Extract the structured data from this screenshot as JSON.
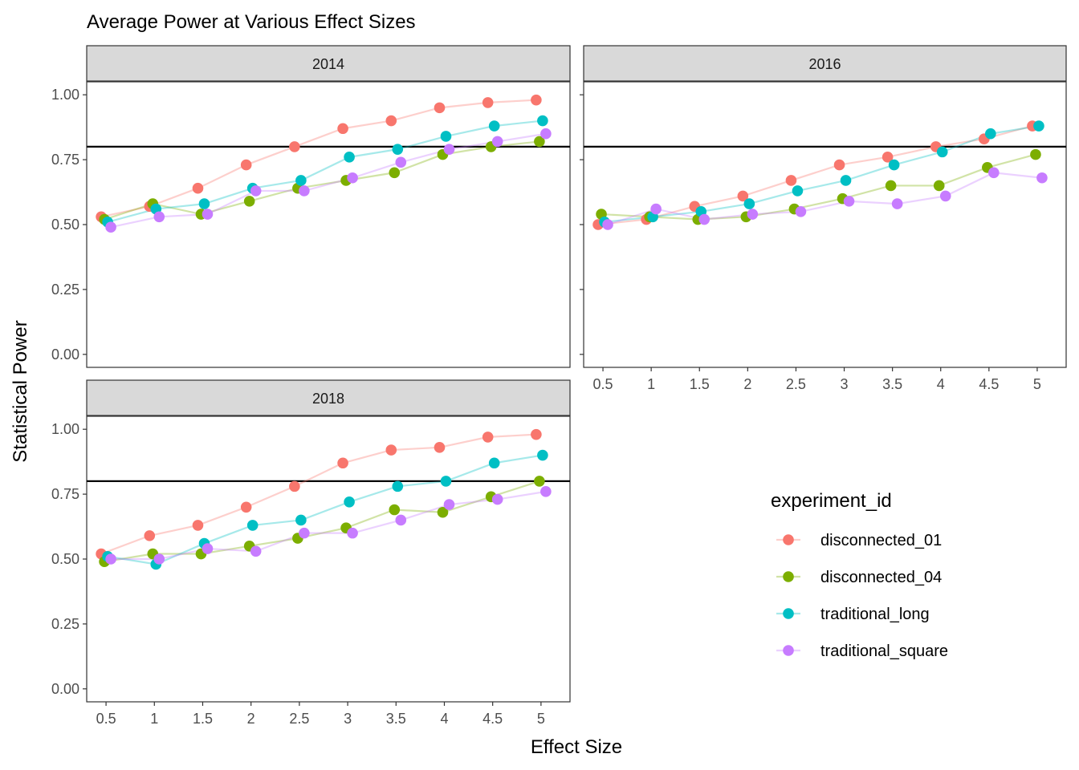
{
  "chart_data": {
    "type": "line",
    "title": "Average Power at Various Effect Sizes",
    "xlabel": "Effect Size",
    "ylabel": "Statistical Power",
    "x_ticks": [
      "0.5",
      "1",
      "1.5",
      "2",
      "2.5",
      "3",
      "3.5",
      "4",
      "4.5",
      "5"
    ],
    "y_ticks": [
      "0.00",
      "0.25",
      "0.50",
      "0.75",
      "1.00"
    ],
    "x": [
      0.5,
      1,
      1.5,
      2,
      2.5,
      3,
      3.5,
      4,
      4.5,
      5
    ],
    "xlim": [
      0.3,
      5.3
    ],
    "ylim": [
      -0.05,
      1.05
    ],
    "reference_line": 0.8,
    "legend": {
      "title": "experiment_id",
      "position": "right"
    },
    "series_meta": [
      {
        "name": "disconnected_01",
        "color": "#F8766D"
      },
      {
        "name": "disconnected_04",
        "color": "#7CAE00"
      },
      {
        "name": "traditional_long",
        "color": "#00BFC4"
      },
      {
        "name": "traditional_square",
        "color": "#C77CFF"
      }
    ],
    "panels": [
      {
        "label": "2014",
        "series": [
          {
            "name": "disconnected_01",
            "values": [
              0.53,
              0.57,
              0.64,
              0.73,
              0.8,
              0.87,
              0.9,
              0.95,
              0.97,
              0.98
            ]
          },
          {
            "name": "disconnected_04",
            "values": [
              0.52,
              0.58,
              0.54,
              0.59,
              0.64,
              0.67,
              0.7,
              0.77,
              0.8,
              0.82
            ]
          },
          {
            "name": "traditional_long",
            "values": [
              0.51,
              0.56,
              0.58,
              0.64,
              0.67,
              0.76,
              0.79,
              0.84,
              0.88,
              0.9
            ]
          },
          {
            "name": "traditional_square",
            "values": [
              0.49,
              0.53,
              0.54,
              0.63,
              0.63,
              0.68,
              0.74,
              0.79,
              0.82,
              0.85
            ]
          }
        ]
      },
      {
        "label": "2016",
        "series": [
          {
            "name": "disconnected_01",
            "values": [
              0.5,
              0.52,
              0.57,
              0.61,
              0.67,
              0.73,
              0.76,
              0.8,
              0.83,
              0.88
            ]
          },
          {
            "name": "disconnected_04",
            "values": [
              0.54,
              0.53,
              0.52,
              0.53,
              0.56,
              0.6,
              0.65,
              0.65,
              0.72,
              0.77
            ]
          },
          {
            "name": "traditional_long",
            "values": [
              0.51,
              0.53,
              0.55,
              0.58,
              0.63,
              0.67,
              0.73,
              0.78,
              0.85,
              0.88
            ]
          },
          {
            "name": "traditional_square",
            "values": [
              0.5,
              0.56,
              0.52,
              0.54,
              0.55,
              0.59,
              0.58,
              0.61,
              0.7,
              0.68
            ]
          }
        ]
      },
      {
        "label": "2018",
        "series": [
          {
            "name": "disconnected_01",
            "values": [
              0.52,
              0.59,
              0.63,
              0.7,
              0.78,
              0.87,
              0.92,
              0.93,
              0.97,
              0.98
            ]
          },
          {
            "name": "disconnected_04",
            "values": [
              0.49,
              0.52,
              0.52,
              0.55,
              0.58,
              0.62,
              0.69,
              0.68,
              0.74,
              0.8
            ]
          },
          {
            "name": "traditional_long",
            "values": [
              0.51,
              0.48,
              0.56,
              0.63,
              0.65,
              0.72,
              0.78,
              0.8,
              0.87,
              0.9
            ]
          },
          {
            "name": "traditional_square",
            "values": [
              0.5,
              0.5,
              0.54,
              0.53,
              0.6,
              0.6,
              0.65,
              0.71,
              0.73,
              0.76
            ]
          }
        ]
      }
    ]
  }
}
